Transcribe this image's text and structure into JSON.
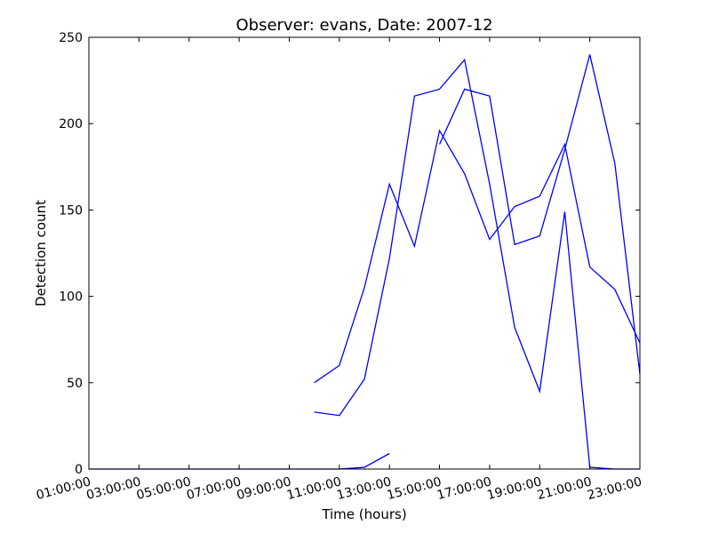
{
  "chart_data": {
    "type": "line",
    "title": "Observer: evans, Date: 2007-12",
    "xlabel": "Time (hours)",
    "ylabel": "Detection count",
    "xlim": [
      0,
      22
    ],
    "ylim": [
      0,
      250
    ],
    "x_tick_values": [
      0,
      2,
      4,
      6,
      8,
      10,
      12,
      14,
      16,
      18,
      20,
      22
    ],
    "x_tick_labels": [
      "01:00:00",
      "03:00:00",
      "05:00:00",
      "07:00:00",
      "09:00:00",
      "11:00:00",
      "13:00:00",
      "15:00:00",
      "17:00:00",
      "19:00:00",
      "21:00:00",
      "23:00:00"
    ],
    "y_ticks": [
      0,
      50,
      100,
      150,
      200,
      250
    ],
    "grid": false,
    "color": "#0000ff",
    "series": [
      {
        "x": [
          0,
          1,
          2,
          3,
          4,
          5,
          6,
          7,
          8,
          9,
          10,
          11,
          12
        ],
        "y": [
          0,
          0,
          0,
          0,
          0,
          0,
          0,
          0,
          0,
          0,
          0,
          1,
          9
        ]
      },
      {
        "x": [
          9,
          10,
          11,
          12,
          13,
          14,
          15,
          16,
          17,
          18,
          19,
          20,
          21,
          22
        ],
        "y": [
          50,
          60,
          105,
          165,
          129,
          196,
          171,
          133,
          152,
          158,
          188,
          117,
          104,
          73
        ]
      },
      {
        "x": [
          9,
          10,
          11,
          12,
          13,
          14,
          15,
          16,
          17,
          18,
          19,
          20,
          21,
          22
        ],
        "y": [
          33,
          31,
          52,
          122,
          216,
          220,
          237,
          165,
          82,
          45,
          149,
          1,
          0,
          0
        ]
      },
      {
        "x": [
          14,
          15,
          16,
          17,
          18,
          19,
          20,
          21,
          22
        ],
        "y": [
          188,
          220,
          216,
          130,
          135,
          185,
          240,
          177,
          55
        ]
      }
    ]
  }
}
